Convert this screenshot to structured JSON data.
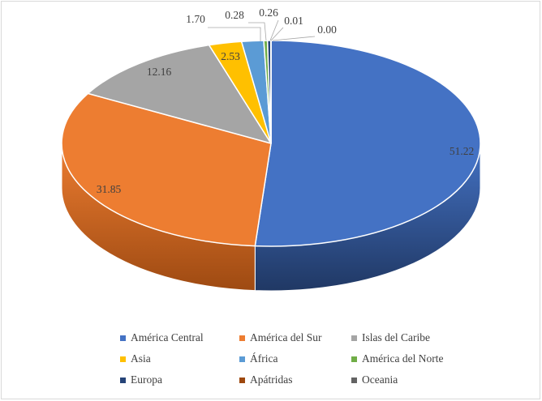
{
  "chart_data": {
    "type": "pie",
    "style": "3d",
    "title": "",
    "legend_position": "bottom",
    "slices": [
      {
        "label": "América Central",
        "value": 51.22,
        "display": "51.22",
        "color": "#4472c4",
        "side": "#203864"
      },
      {
        "label": "América del Sur",
        "value": 31.85,
        "display": "31.85",
        "color": "#ed7d31",
        "side": "#9e4a12"
      },
      {
        "label": "Islas del Caribe",
        "value": 12.16,
        "display": "12.16",
        "color": "#a5a5a5",
        "side": "#6e6e6e"
      },
      {
        "label": "Asia",
        "value": 2.53,
        "display": "2.53",
        "color": "#ffc000",
        "side": "#b38600"
      },
      {
        "label": "África",
        "value": 1.7,
        "display": "1.70",
        "color": "#5b9bd5",
        "side": "#2e6ea6"
      },
      {
        "label": "América del Norte",
        "value": 0.28,
        "display": "0.28",
        "color": "#70ad47",
        "side": "#4a7a2c"
      },
      {
        "label": "Europa",
        "value": 0.26,
        "display": "0.26",
        "color": "#264478",
        "side": "#132240"
      },
      {
        "label": "Apátridas",
        "value": 0.01,
        "display": "0.01",
        "color": "#9e480e",
        "side": "#5f2a08"
      },
      {
        "label": "Oceania",
        "value": 0.0,
        "display": "0.00",
        "color": "#636363",
        "side": "#3a3a3a"
      }
    ]
  }
}
